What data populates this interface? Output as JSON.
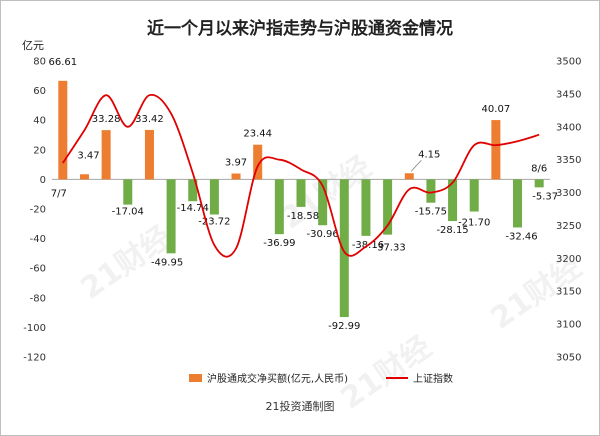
{
  "chart_data": {
    "type": "bar+line",
    "title": "近一个月以来沪指走势与沪股通资金情况",
    "ylabel_left": "亿元",
    "ylim_left": [
      -120,
      80
    ],
    "yticks_left": [
      80,
      60,
      40,
      20,
      0,
      -20,
      -40,
      -60,
      -80,
      -100,
      -120
    ],
    "ylim_right": [
      3050,
      3500
    ],
    "yticks_right": [
      3500,
      3450,
      3400,
      3350,
      3300,
      3250,
      3200,
      3150,
      3100,
      3050
    ],
    "x_start_label": "7/7",
    "x_end_label": "8/6",
    "series": [
      {
        "name": "沪股通成交净买额(亿元,人民币)",
        "type": "bar",
        "axis": "left",
        "values": [
          66.61,
          3.47,
          33.28,
          -17.04,
          33.42,
          -49.95,
          -14.74,
          -23.72,
          3.97,
          23.44,
          -36.99,
          -18.58,
          -30.96,
          -92.99,
          -38.16,
          -37.33,
          4.15,
          -15.75,
          -28.15,
          -21.7,
          40.07,
          -32.46,
          -5.37
        ]
      },
      {
        "name": "上证指数",
        "type": "line",
        "axis": "right",
        "values": [
          3345,
          3395,
          3448,
          3400,
          3448,
          3420,
          3330,
          3220,
          3215,
          3340,
          3350,
          3335,
          3310,
          3210,
          3218,
          3250,
          3305,
          3300,
          3315,
          3372,
          3372,
          3378,
          3388
        ]
      }
    ],
    "colors": {
      "bar_positive": "#ED7D31",
      "bar_negative": "#70AD47",
      "line": "#E00000"
    },
    "legend_position": "bottom",
    "grid": false
  },
  "footer": "21投资通制图",
  "watermark": "21财经"
}
